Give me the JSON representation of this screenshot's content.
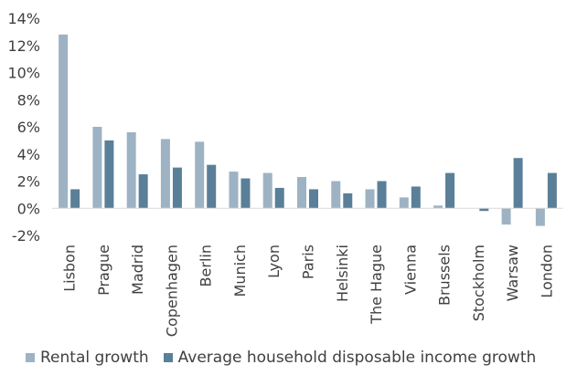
{
  "chart_data": {
    "type": "bar",
    "categories": [
      "Lisbon",
      "Prague",
      "Madrid",
      "Copenhagen",
      "Berlin",
      "Munich",
      "Lyon",
      "Paris",
      "Helsinki",
      "The Hague",
      "Vienna",
      "Brussels",
      "Stockholm",
      "Warsaw",
      "London"
    ],
    "series": [
      {
        "name": "Rental growth",
        "color": "#9db3c4",
        "values": [
          12.8,
          6.0,
          5.6,
          5.1,
          4.9,
          2.7,
          2.6,
          2.3,
          2.0,
          1.4,
          0.8,
          0.2,
          0.0,
          -1.2,
          -1.3
        ]
      },
      {
        "name": "Average household disposable income growth",
        "color": "#5a7f98",
        "values": [
          1.4,
          5.0,
          2.5,
          3.0,
          3.2,
          2.2,
          1.5,
          1.4,
          1.1,
          2.0,
          1.6,
          2.6,
          -0.2,
          3.7,
          2.6
        ]
      }
    ],
    "ylim": [
      -2,
      14
    ],
    "yticks": [
      -2,
      0,
      2,
      4,
      6,
      8,
      10,
      12,
      14
    ],
    "ytick_labels": [
      "-2%",
      "0%",
      "2%",
      "4%",
      "6%",
      "8%",
      "10%",
      "12%",
      "14%"
    ],
    "grid": false,
    "legend": "bottom"
  }
}
